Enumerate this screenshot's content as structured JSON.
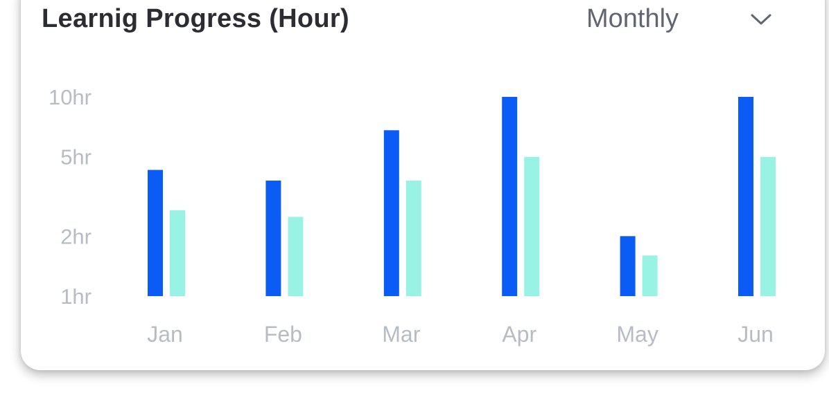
{
  "header": {
    "title": "Learnig Progress (Hour)",
    "period_selected": "Monthly",
    "period_icon": "chevron-down-icon"
  },
  "colors": {
    "series_primary": "#0a5cf5",
    "series_secondary": "#98f3e4"
  },
  "chart_data": {
    "type": "bar",
    "title": "Learnig Progress (Hour)",
    "categories": [
      "Jan",
      "Feb",
      "Mar",
      "Apr",
      "May",
      "Jun"
    ],
    "y_ticks": [
      {
        "value": 1,
        "label": "1hr"
      },
      {
        "value": 2,
        "label": "2hr"
      },
      {
        "value": 5,
        "label": "5hr"
      },
      {
        "value": 10,
        "label": "10hr"
      }
    ],
    "ylim": [
      1,
      10
    ],
    "y_scale": "log",
    "grid": false,
    "legend": "none",
    "series": [
      {
        "values": [
          4.3,
          3.8,
          6.8,
          10,
          2,
          10
        ]
      },
      {
        "values": [
          2.7,
          2.5,
          3.8,
          5,
          1.6,
          5
        ]
      }
    ]
  }
}
